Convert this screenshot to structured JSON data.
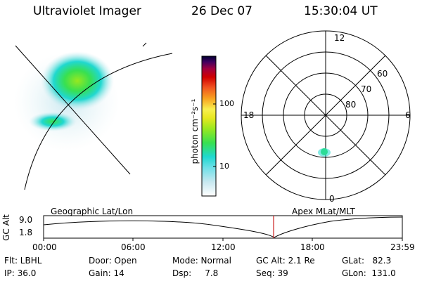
{
  "header": {
    "instrument": "Ultraviolet Imager",
    "date": "26 Dec 07",
    "time": "15:30:04 UT"
  },
  "colorbar": {
    "unit_label": "photon cm⁻²s⁻¹",
    "ticks": [
      "100",
      "10"
    ],
    "scale": "log",
    "colors": [
      "#ffffff",
      "#c8e8f0",
      "#70e0e8",
      "#20d8d0",
      "#38e050",
      "#98e820",
      "#e8e820",
      "#f8f050",
      "#f8a020",
      "#f05020",
      "#d00000",
      "#a00040",
      "#400060",
      "#000030"
    ]
  },
  "polar_plot": {
    "mlt_labels": [
      "12",
      "18",
      "6",
      "0"
    ],
    "lat_labels": [
      "60",
      "70",
      "80"
    ]
  },
  "timeline": {
    "left_label": "Geographic Lat/Lon",
    "right_label": "Apex MLat/MLT",
    "y_axis_label": "GC Alt",
    "y_ticks": [
      "9.0",
      "1.8"
    ],
    "x_ticks": [
      "00:00",
      "06:00",
      "12:00",
      "18:00",
      "23:59"
    ],
    "current_marker_color": "#cc2020"
  },
  "info": {
    "flt": "Flt: LBHL",
    "ip": "IP: 36.0",
    "door": "Door: Open",
    "gain": "Gain: 14",
    "mode": "Mode: Normal",
    "dsp": "Dsp:     7.8",
    "gcalt": "GC Alt: 2.1 Re",
    "seq": "Seq: 39",
    "glat": "GLat:   82.3",
    "glon": "GLon:  131.0"
  }
}
